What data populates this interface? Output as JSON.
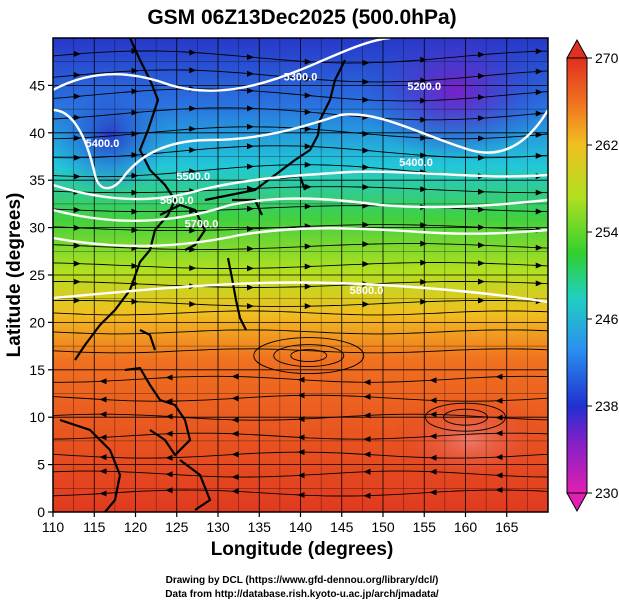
{
  "title": "GSM 06Z13Dec2025 (500.0hPa)",
  "xlabel": "Longitude (degrees)",
  "ylabel": "Latitude  (degrees)",
  "credits": {
    "line1": "Drawing by DCL (https://www.gfd-dennou.org/library/dcl/)",
    "line2": "Data from http://database.rish.kyoto-u.ac.jp/arch/jmadata/"
  },
  "chart_data": {
    "type": "heatmap",
    "variable": "temperature (K) shaded, geopotential height (m) contoured, wind streamlines",
    "xlim": [
      110,
      170
    ],
    "ylim": [
      0,
      50
    ],
    "x_ticks": [
      110,
      115,
      120,
      125,
      130,
      135,
      140,
      145,
      150,
      155,
      160,
      165
    ],
    "y_ticks": [
      0,
      5,
      10,
      15,
      20,
      25,
      30,
      35,
      40,
      45
    ],
    "colorbar": {
      "ticks": [
        230,
        238,
        246,
        254,
        262,
        270
      ],
      "range": [
        230,
        270
      ],
      "colors": [
        "#e020b0",
        "#7a20c8",
        "#2030d0",
        "#2ab0f0",
        "#20d0c0",
        "#30d030",
        "#a0e020",
        "#f0d020",
        "#f08020",
        "#e03020"
      ]
    },
    "height_contours": [
      {
        "label": "5200.0",
        "lon": 155,
        "lat": 44.5
      },
      {
        "label": "5300.0",
        "lon": 140,
        "lat": 45.5
      },
      {
        "label": "5400.0",
        "lon": 116,
        "lat": 38.5
      },
      {
        "label": "5400.0",
        "lon": 154,
        "lat": 36.5
      },
      {
        "label": "5500.0",
        "lon": 127,
        "lat": 35
      },
      {
        "label": "5600.0",
        "lon": 125,
        "lat": 32.5
      },
      {
        "label": "5700.0",
        "lon": 128,
        "lat": 30
      },
      {
        "label": "5800.0",
        "lon": 148,
        "lat": 23
      }
    ]
  }
}
